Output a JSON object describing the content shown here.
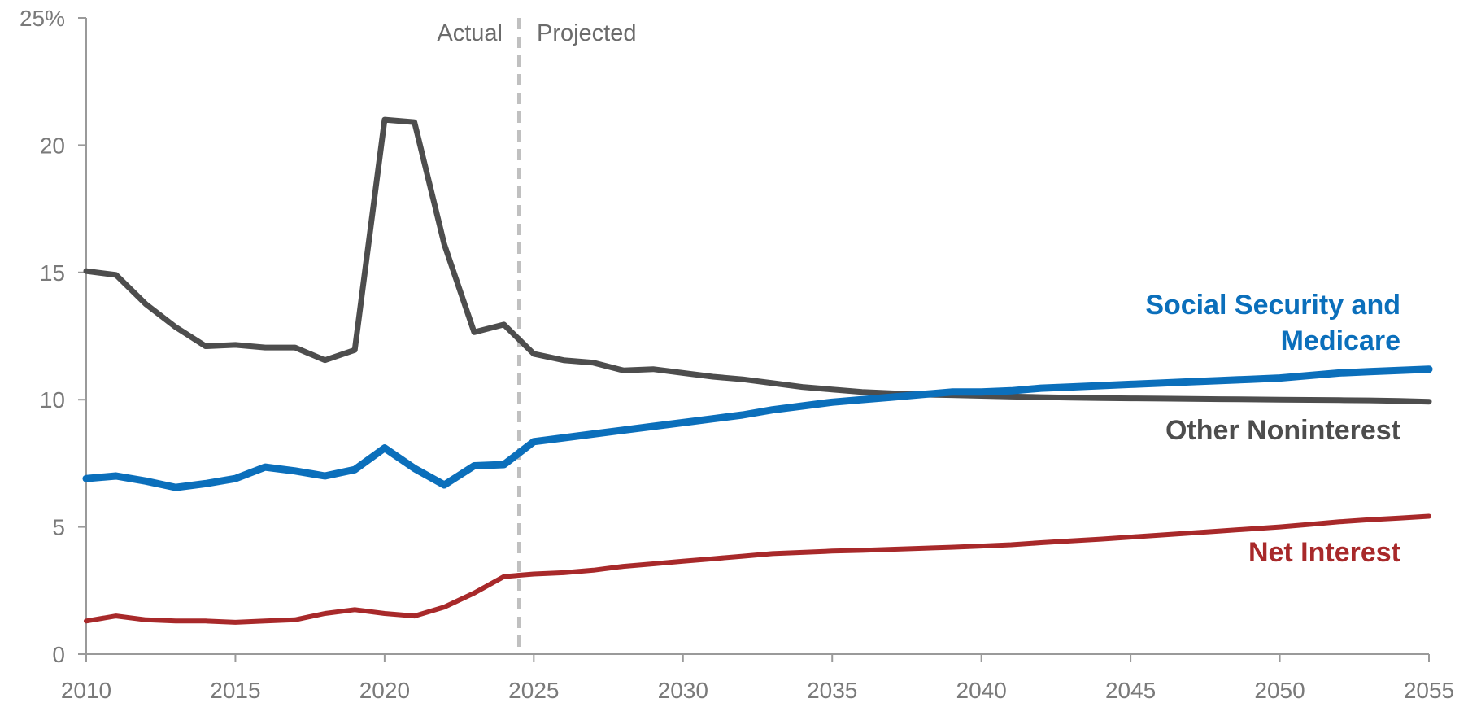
{
  "chart_data": {
    "type": "line",
    "x_range": [
      2010,
      2055
    ],
    "ylim": [
      0,
      25
    ],
    "x_ticks": [
      "2010",
      "2015",
      "2020",
      "2025",
      "2030",
      "2035",
      "2040",
      "2045",
      "2050",
      "2055"
    ],
    "y_ticks": [
      {
        "value": 0,
        "label": "0"
      },
      {
        "value": 5,
        "label": "5"
      },
      {
        "value": 10,
        "label": "10"
      },
      {
        "value": 15,
        "label": "15"
      },
      {
        "value": 20,
        "label": "20"
      },
      {
        "value": 25,
        "label": "25%"
      }
    ],
    "divider": {
      "x": 2024.5,
      "left_label": "Actual",
      "right_label": "Projected",
      "color": "#c0c0c0"
    },
    "grid": false,
    "legend": "inline labels at right",
    "series": [
      {
        "name": "Social Security and Medicare",
        "label_lines": [
          "Social Security and",
          "Medicare"
        ],
        "color": "#0b6fbb",
        "x": [
          2010,
          2011,
          2012,
          2013,
          2014,
          2015,
          2016,
          2017,
          2018,
          2019,
          2020,
          2021,
          2022,
          2023,
          2024,
          2025,
          2026,
          2027,
          2028,
          2029,
          2030,
          2031,
          2032,
          2033,
          2034,
          2035,
          2036,
          2037,
          2038,
          2039,
          2040,
          2041,
          2042,
          2043,
          2044,
          2045,
          2046,
          2047,
          2048,
          2049,
          2050,
          2051,
          2052,
          2053,
          2054,
          2055
        ],
        "values": [
          6.9,
          7.0,
          6.8,
          6.55,
          6.7,
          6.9,
          7.35,
          7.2,
          7.0,
          7.25,
          8.1,
          7.3,
          6.65,
          7.4,
          7.45,
          8.35,
          8.5,
          8.65,
          8.8,
          8.95,
          9.1,
          9.25,
          9.4,
          9.6,
          9.75,
          9.9,
          10.0,
          10.1,
          10.2,
          10.3,
          10.3,
          10.35,
          10.45,
          10.5,
          10.55,
          10.6,
          10.65,
          10.7,
          10.75,
          10.8,
          10.85,
          10.95,
          11.05,
          11.1,
          11.15,
          11.2
        ]
      },
      {
        "name": "Other Noninterest",
        "label_lines": [
          "Other Noninterest"
        ],
        "color": "#4d4d4d",
        "x": [
          2010,
          2011,
          2012,
          2013,
          2014,
          2015,
          2016,
          2017,
          2018,
          2019,
          2020,
          2021,
          2022,
          2023,
          2024,
          2025,
          2026,
          2027,
          2028,
          2029,
          2030,
          2031,
          2032,
          2033,
          2034,
          2035,
          2036,
          2037,
          2038,
          2039,
          2040,
          2041,
          2042,
          2043,
          2044,
          2045,
          2046,
          2047,
          2048,
          2049,
          2050,
          2051,
          2052,
          2053,
          2054,
          2055
        ],
        "values": [
          15.05,
          14.9,
          13.75,
          12.85,
          12.1,
          12.15,
          12.05,
          12.05,
          11.55,
          11.95,
          21.0,
          20.9,
          16.1,
          12.65,
          12.95,
          11.8,
          11.55,
          11.45,
          11.15,
          11.2,
          11.05,
          10.9,
          10.8,
          10.65,
          10.5,
          10.4,
          10.3,
          10.25,
          10.2,
          10.18,
          10.15,
          10.12,
          10.1,
          10.08,
          10.06,
          10.05,
          10.04,
          10.03,
          10.02,
          10.01,
          10.0,
          9.99,
          9.98,
          9.97,
          9.95,
          9.92
        ]
      },
      {
        "name": "Net Interest",
        "label_lines": [
          "Net Interest"
        ],
        "color": "#a8292a",
        "x": [
          2010,
          2011,
          2012,
          2013,
          2014,
          2015,
          2016,
          2017,
          2018,
          2019,
          2020,
          2021,
          2022,
          2023,
          2024,
          2025,
          2026,
          2027,
          2028,
          2029,
          2030,
          2031,
          2032,
          2033,
          2034,
          2035,
          2036,
          2037,
          2038,
          2039,
          2040,
          2041,
          2042,
          2043,
          2044,
          2045,
          2046,
          2047,
          2048,
          2049,
          2050,
          2051,
          2052,
          2053,
          2054,
          2055
        ],
        "values": [
          1.3,
          1.5,
          1.35,
          1.3,
          1.3,
          1.25,
          1.3,
          1.35,
          1.6,
          1.75,
          1.6,
          1.5,
          1.85,
          2.4,
          3.05,
          3.15,
          3.2,
          3.3,
          3.45,
          3.55,
          3.65,
          3.75,
          3.85,
          3.95,
          4.0,
          4.05,
          4.08,
          4.12,
          4.16,
          4.2,
          4.25,
          4.3,
          4.38,
          4.45,
          4.52,
          4.6,
          4.68,
          4.76,
          4.84,
          4.92,
          5.0,
          5.1,
          5.2,
          5.28,
          5.35,
          5.42
        ]
      }
    ]
  }
}
